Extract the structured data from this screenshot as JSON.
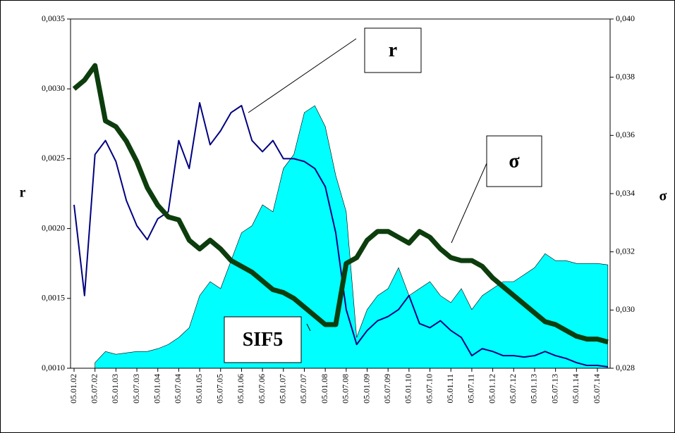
{
  "chart_data": {
    "type": "line",
    "y_label": "r",
    "y2_label": "σ",
    "categories": [
      "05.01.02",
      null,
      "05.07.02",
      null,
      "05.01.03",
      null,
      "05.07.03",
      null,
      "05.01.04",
      null,
      "05.07.04",
      null,
      "05.01.05",
      null,
      "05.07.05",
      null,
      "05.01.06",
      null,
      "05.07.06",
      null,
      "05.01.07",
      null,
      "05.07.07",
      null,
      "05.01.08",
      null,
      "05.07.08",
      null,
      "05.01.09",
      null,
      "05.07.09",
      null,
      "05.01.10",
      null,
      "05.07.10",
      null,
      "05.01.11",
      null,
      "05.07.11",
      null,
      "05.01.12",
      null,
      "05.07.12",
      null,
      "05.01.13",
      null,
      "05.07.13",
      null,
      "05.01.14",
      null,
      "05.07.14",
      null
    ],
    "series": [
      {
        "name": "SIF5",
        "color": "#00ffff",
        "style": "area",
        "axis": "y",
        "values": [
          null,
          null,
          0.00104,
          0.00112,
          0.0011,
          0.00111,
          0.00112,
          0.00112,
          0.00114,
          0.00117,
          0.00122,
          0.00129,
          0.00152,
          0.00162,
          0.00157,
          0.00177,
          0.00197,
          0.00202,
          0.00217,
          0.00212,
          0.00243,
          0.00253,
          0.00283,
          0.00288,
          0.00273,
          0.00238,
          0.00212,
          0.00122,
          0.00142,
          0.00152,
          0.00157,
          0.00172,
          0.00152,
          0.00157,
          0.00162,
          0.00152,
          0.00147,
          0.00157,
          0.00142,
          0.00152,
          0.00157,
          0.00162,
          0.00162,
          0.00167,
          0.00172,
          0.00182,
          0.00177,
          0.00177,
          0.00175,
          0.00175,
          0.00175,
          0.00174
        ]
      },
      {
        "name": "r",
        "color": "#000080",
        "style": "line",
        "axis": "y",
        "values": [
          0.00217,
          0.00152,
          0.00253,
          0.00263,
          0.00248,
          0.0022,
          0.00202,
          0.00192,
          0.00207,
          0.00212,
          0.00263,
          0.00243,
          0.0029,
          0.0026,
          0.0027,
          0.00283,
          0.00288,
          0.00263,
          0.00255,
          0.00263,
          0.0025,
          0.0025,
          0.00248,
          0.00243,
          0.0023,
          0.00197,
          0.00142,
          0.00117,
          0.00127,
          0.00134,
          0.00137,
          0.00142,
          0.00152,
          0.00132,
          0.00129,
          0.00134,
          0.00127,
          0.00122,
          0.00109,
          0.00114,
          0.00112,
          0.00109,
          0.00109,
          0.00108,
          0.00109,
          0.00112,
          0.00109,
          0.00107,
          0.00104,
          0.00102,
          0.00102,
          0.00101
        ]
      },
      {
        "name": "σ",
        "color": "#0d3d0d",
        "style": "line",
        "axis": "y2",
        "values": [
          0.0376,
          0.0379,
          0.0384,
          0.0365,
          0.0363,
          0.0358,
          0.0351,
          0.0342,
          0.0336,
          0.0332,
          0.0331,
          0.0324,
          0.0321,
          0.0324,
          0.0321,
          0.0317,
          0.0315,
          0.0313,
          0.031,
          0.0307,
          0.0306,
          0.0304,
          0.0301,
          0.0298,
          0.0295,
          0.0295,
          0.0316,
          0.0318,
          0.0324,
          0.0327,
          0.0327,
          0.0325,
          0.0323,
          0.0327,
          0.0325,
          0.0321,
          0.0318,
          0.0317,
          0.0317,
          0.0315,
          0.0311,
          0.0308,
          0.0305,
          0.0302,
          0.0299,
          0.0296,
          0.0295,
          0.0293,
          0.0291,
          0.029,
          0.029,
          0.0289
        ]
      }
    ],
    "ylim": [
      0.001,
      0.0035
    ],
    "yticks": [
      {
        "value": 0.001,
        "label": "0,0010"
      },
      {
        "value": 0.0015,
        "label": "0,0015"
      },
      {
        "value": 0.002,
        "label": "0,0020"
      },
      {
        "value": 0.0025,
        "label": "0,0025"
      },
      {
        "value": 0.003,
        "label": "0,0030"
      },
      {
        "value": 0.0035,
        "label": "0,0035"
      }
    ],
    "y2lim": [
      0.028,
      0.04
    ],
    "y2ticks": [
      {
        "value": 0.028,
        "label": "0,028"
      },
      {
        "value": 0.03,
        "label": "0,030"
      },
      {
        "value": 0.032,
        "label": "0,032"
      },
      {
        "value": 0.034,
        "label": "0,034"
      },
      {
        "value": 0.036,
        "label": "0,036"
      },
      {
        "value": 0.038,
        "label": "0,038"
      },
      {
        "value": 0.04,
        "label": "0,040"
      }
    ],
    "grid": false
  }
}
